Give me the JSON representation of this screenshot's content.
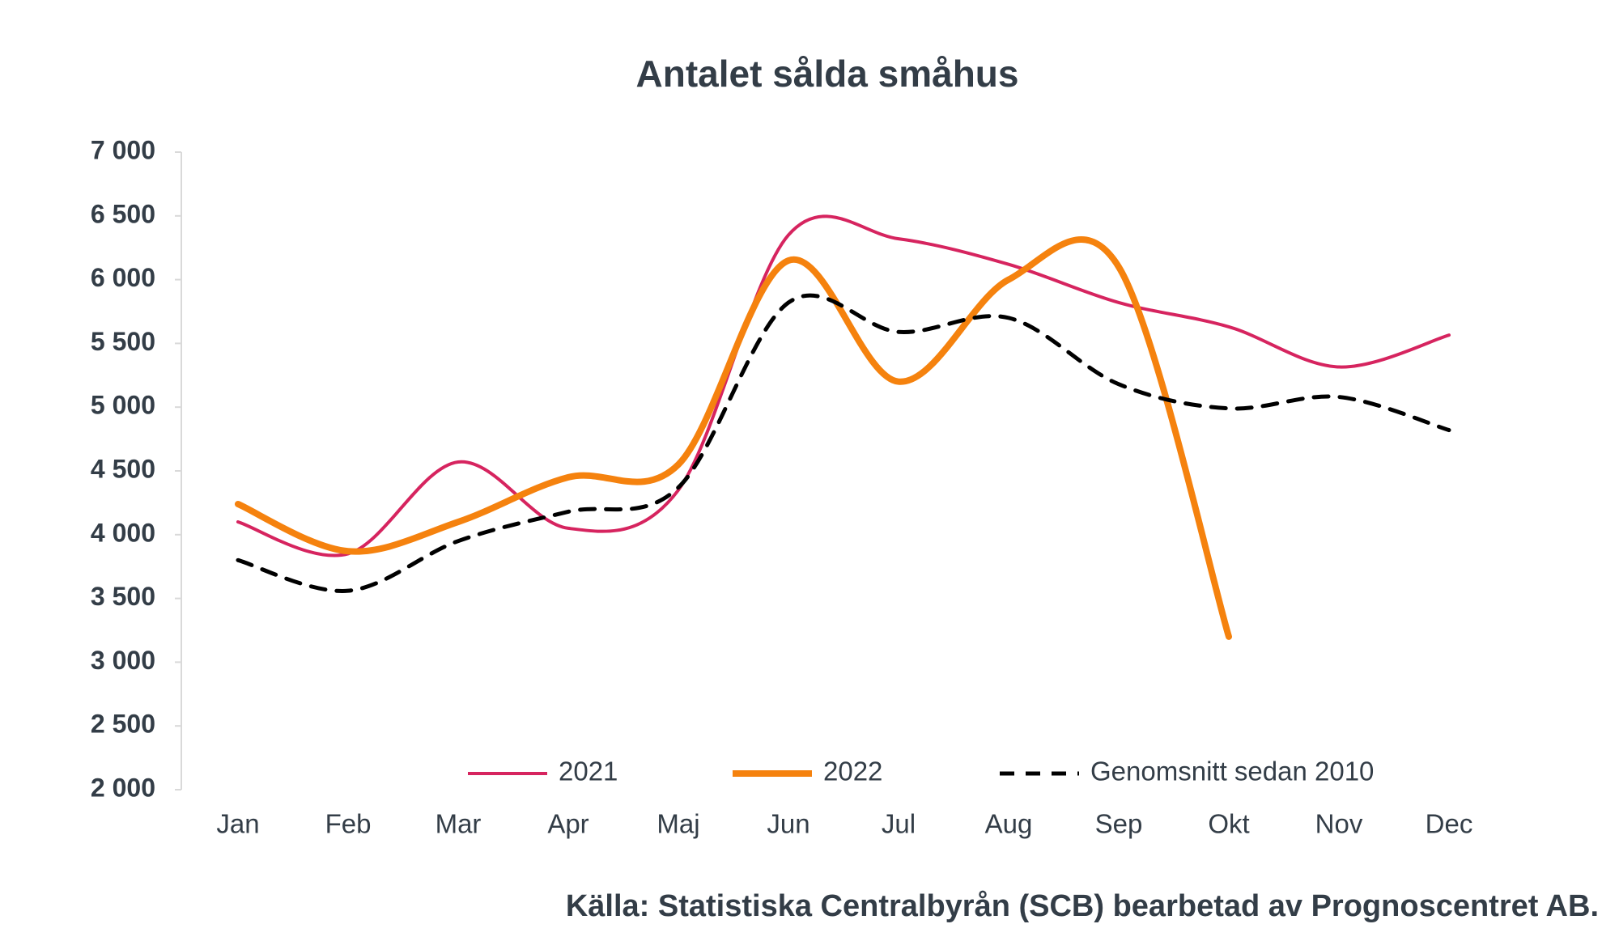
{
  "chart_data": {
    "type": "line",
    "title": "Antalet sålda småhus",
    "categories": [
      "Jan",
      "Feb",
      "Mar",
      "Apr",
      "Maj",
      "Jun",
      "Jul",
      "Aug",
      "Sep",
      "Okt",
      "Nov",
      "Dec"
    ],
    "series": [
      {
        "name": "2021",
        "color": "#d6245f",
        "values": [
          4100,
          3850,
          4570,
          4050,
          4350,
          6350,
          6320,
          6120,
          5820,
          5630,
          5315,
          5565
        ]
      },
      {
        "name": "2022",
        "color": "#f5820e",
        "values": [
          4240,
          3870,
          4100,
          4450,
          4550,
          6150,
          5200,
          6000,
          6100,
          3200,
          null,
          null
        ]
      },
      {
        "name": "Genomsnitt sedan 2010",
        "color": "#000000",
        "dashed": true,
        "values": [
          3800,
          3560,
          3950,
          4180,
          4370,
          5820,
          5590,
          5700,
          5180,
          4990,
          5080,
          4820
        ]
      }
    ],
    "ylim": [
      2000,
      7000
    ],
    "yticks": [
      {
        "value": 2000,
        "label": "2 000"
      },
      {
        "value": 2500,
        "label": "2 500"
      },
      {
        "value": 3000,
        "label": "3 000"
      },
      {
        "value": 3500,
        "label": "3 500"
      },
      {
        "value": 4000,
        "label": "4 000"
      },
      {
        "value": 4500,
        "label": "4 500"
      },
      {
        "value": 5000,
        "label": "5 000"
      },
      {
        "value": 5500,
        "label": "5 500"
      },
      {
        "value": 6000,
        "label": "6 000"
      },
      {
        "value": 6500,
        "label": "6 500"
      },
      {
        "value": 7000,
        "label": "7 000"
      }
    ],
    "legend": "bottom",
    "source": "Källa: Statistiska Centralbyrån (SCB) bearbetad av Prognoscentret AB."
  }
}
